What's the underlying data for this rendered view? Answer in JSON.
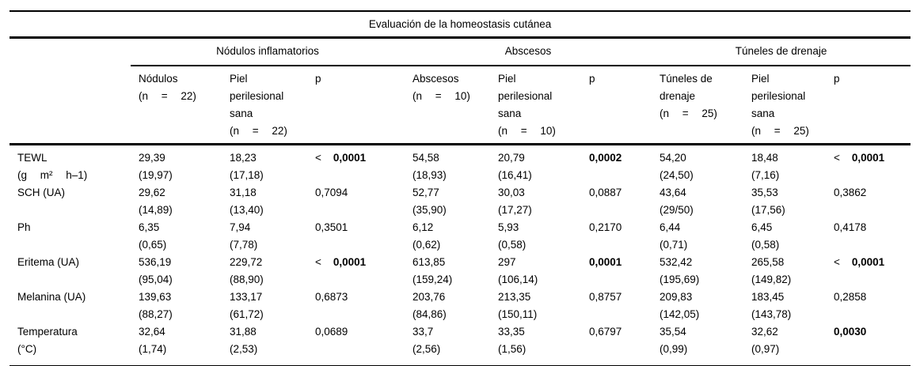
{
  "title": "Evaluación de la homeostasis cutánea",
  "colors": {
    "text": "#000000",
    "rule": "#000000",
    "background": "#ffffff"
  },
  "table": {
    "groups": [
      {
        "label": "Nódulos inflamatorios"
      },
      {
        "label": "Abscesos"
      },
      {
        "label": "Túneles de drenaje"
      }
    ],
    "subheaders": [
      {
        "lines": [
          "Nódulos",
          "(n = 22)"
        ]
      },
      {
        "lines": [
          "Piel",
          "perilesional",
          "sana",
          "(n = 22)"
        ]
      },
      {
        "lines": [
          "p"
        ]
      },
      {
        "lines": [
          "Abscesos",
          "(n = 10)"
        ]
      },
      {
        "lines": [
          "Piel",
          "perilesional",
          "sana",
          "(n = 10)"
        ]
      },
      {
        "lines": [
          "p"
        ]
      },
      {
        "lines": [
          "Túneles de",
          "drenaje",
          "(n = 25)"
        ]
      },
      {
        "lines": [
          "Piel",
          "perilesional",
          "sana",
          "(n = 25)"
        ]
      },
      {
        "lines": [
          "p"
        ]
      }
    ],
    "rows": [
      {
        "label": [
          "TEWL",
          "(g m² h–1)"
        ],
        "cells": [
          {
            "type": "value",
            "mean": "29,39",
            "sd": "(19,97)"
          },
          {
            "type": "value",
            "mean": "18,23",
            "sd": "(17,18)"
          },
          {
            "type": "p",
            "lt": true,
            "value": "0,0001",
            "bold": true
          },
          {
            "type": "value",
            "mean": "54,58",
            "sd": "(18,93)"
          },
          {
            "type": "value",
            "mean": "20,79",
            "sd": "(16,41)"
          },
          {
            "type": "p",
            "lt": false,
            "value": "0,0002",
            "bold": true
          },
          {
            "type": "value",
            "mean": "54,20",
            "sd": "(24,50)"
          },
          {
            "type": "value",
            "mean": "18,48",
            "sd": "(7,16)"
          },
          {
            "type": "p",
            "lt": true,
            "value": "0,0001",
            "bold": true
          }
        ]
      },
      {
        "label": [
          "SCH (UA)"
        ],
        "cells": [
          {
            "type": "value",
            "mean": "29,62",
            "sd": "(14,89)"
          },
          {
            "type": "value",
            "mean": "31,18",
            "sd": "(13,40)"
          },
          {
            "type": "p",
            "lt": false,
            "value": "0,7094",
            "bold": false
          },
          {
            "type": "value",
            "mean": "52,77",
            "sd": "(35,90)"
          },
          {
            "type": "value",
            "mean": "30,03",
            "sd": "(17,27)"
          },
          {
            "type": "p",
            "lt": false,
            "value": "0,0887",
            "bold": false
          },
          {
            "type": "value",
            "mean": "43,64",
            "sd": "(29/50)"
          },
          {
            "type": "value",
            "mean": "35,53",
            "sd": "(17,56)"
          },
          {
            "type": "p",
            "lt": false,
            "value": "0,3862",
            "bold": false
          }
        ]
      },
      {
        "label": [
          "Ph"
        ],
        "cells": [
          {
            "type": "value",
            "mean": "6,35",
            "sd": "(0,65)"
          },
          {
            "type": "value",
            "mean": "7,94",
            "sd": "(7,78)"
          },
          {
            "type": "p",
            "lt": false,
            "value": "0,3501",
            "bold": false
          },
          {
            "type": "value",
            "mean": "6,12",
            "sd": "(0,62)"
          },
          {
            "type": "value",
            "mean": "5,93",
            "sd": "(0,58)"
          },
          {
            "type": "p",
            "lt": false,
            "value": "0,2170",
            "bold": false
          },
          {
            "type": "value",
            "mean": "6,44",
            "sd": "(0,71)"
          },
          {
            "type": "value",
            "mean": "6,45",
            "sd": "(0,58)"
          },
          {
            "type": "p",
            "lt": false,
            "value": "0,4178",
            "bold": false
          }
        ]
      },
      {
        "label": [
          "Eritema (UA)"
        ],
        "cells": [
          {
            "type": "value",
            "mean": "536,19",
            "sd": "(95,04)"
          },
          {
            "type": "value",
            "mean": "229,72",
            "sd": "(88,90)"
          },
          {
            "type": "p",
            "lt": true,
            "value": "0,0001",
            "bold": true
          },
          {
            "type": "value",
            "mean": "613,85",
            "sd": "(159,24)"
          },
          {
            "type": "value",
            "mean": "297",
            "sd": "(106,14)"
          },
          {
            "type": "p",
            "lt": false,
            "value": "0,0001",
            "bold": true
          },
          {
            "type": "value",
            "mean": "532,42",
            "sd": "(195,69)"
          },
          {
            "type": "value",
            "mean": "265,58",
            "sd": "(149,82)"
          },
          {
            "type": "p",
            "lt": true,
            "value": "0,0001",
            "bold": true
          }
        ]
      },
      {
        "label": [
          "Melanina (UA)"
        ],
        "cells": [
          {
            "type": "value",
            "mean": "139,63",
            "sd": "(88,27)"
          },
          {
            "type": "value",
            "mean": "133,17",
            "sd": "(61,72)"
          },
          {
            "type": "p",
            "lt": false,
            "value": "0,6873",
            "bold": false
          },
          {
            "type": "value",
            "mean": "203,76",
            "sd": "(84,86)"
          },
          {
            "type": "value",
            "mean": "213,35",
            "sd": "(150,11)"
          },
          {
            "type": "p",
            "lt": false,
            "value": "0,8757",
            "bold": false
          },
          {
            "type": "value",
            "mean": "209,83",
            "sd": "(142,05)"
          },
          {
            "type": "value",
            "mean": "183,45",
            "sd": "(143,78)"
          },
          {
            "type": "p",
            "lt": false,
            "value": "0,2858",
            "bold": false
          }
        ]
      },
      {
        "label": [
          "Temperatura",
          "(°C)"
        ],
        "cells": [
          {
            "type": "value",
            "mean": "32,64",
            "sd": "(1,74)"
          },
          {
            "type": "value",
            "mean": "31,88",
            "sd": "(2,53)"
          },
          {
            "type": "p",
            "lt": false,
            "value": "0,0689",
            "bold": false
          },
          {
            "type": "value",
            "mean": "33,7",
            "sd": "(2,56)"
          },
          {
            "type": "value",
            "mean": "33,35",
            "sd": "(1,56)"
          },
          {
            "type": "p",
            "lt": false,
            "value": "0,6797",
            "bold": false
          },
          {
            "type": "value",
            "mean": "35,54",
            "sd": "(0,99)"
          },
          {
            "type": "value",
            "mean": "32,62",
            "sd": "(0,97)"
          },
          {
            "type": "p",
            "lt": false,
            "value": "0,0030",
            "bold": true
          }
        ]
      }
    ]
  }
}
